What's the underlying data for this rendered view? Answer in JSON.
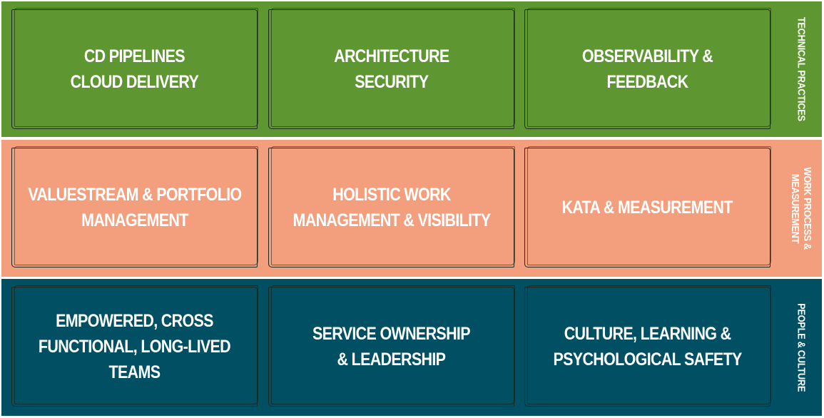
{
  "layers": [
    {
      "color": "#5e9732",
      "side_label": [
        "TECHNICAL PRACTICES"
      ],
      "cells": [
        {
          "lines": [
            "CD PIPELINES",
            "CLOUD DELIVERY"
          ]
        },
        {
          "lines": [
            "ARCHITECTURE",
            "SECURITY"
          ]
        },
        {
          "lines": [
            "OBSERVABILITY &",
            "FEEDBACK"
          ]
        }
      ]
    },
    {
      "color": "#f39f7d",
      "side_label": [
        "WORK PROCESS &",
        "MEASUREMENT"
      ],
      "cells": [
        {
          "lines": [
            "VALUESTREAM & PORTFOLIO",
            "MANAGEMENT"
          ]
        },
        {
          "lines": [
            "HOLISTIC WORK",
            "MANAGEMENT & VISIBILITY"
          ]
        },
        {
          "lines": [
            "KATA & MEASUREMENT"
          ]
        }
      ]
    },
    {
      "color": "#004f63",
      "side_label": [
        "PEOPLE & CULTURE"
      ],
      "cells": [
        {
          "lines": [
            "EMPOWERED, CROSS",
            "FUNCTIONAL, LONG-LIVED",
            "TEAMS"
          ]
        },
        {
          "lines": [
            "SERVICE OWNERSHIP",
            "& LEADERSHIP"
          ]
        },
        {
          "lines": [
            "CULTURE, LEARNING &",
            "PSYCHOLOGICAL SAFETY"
          ]
        }
      ]
    }
  ]
}
